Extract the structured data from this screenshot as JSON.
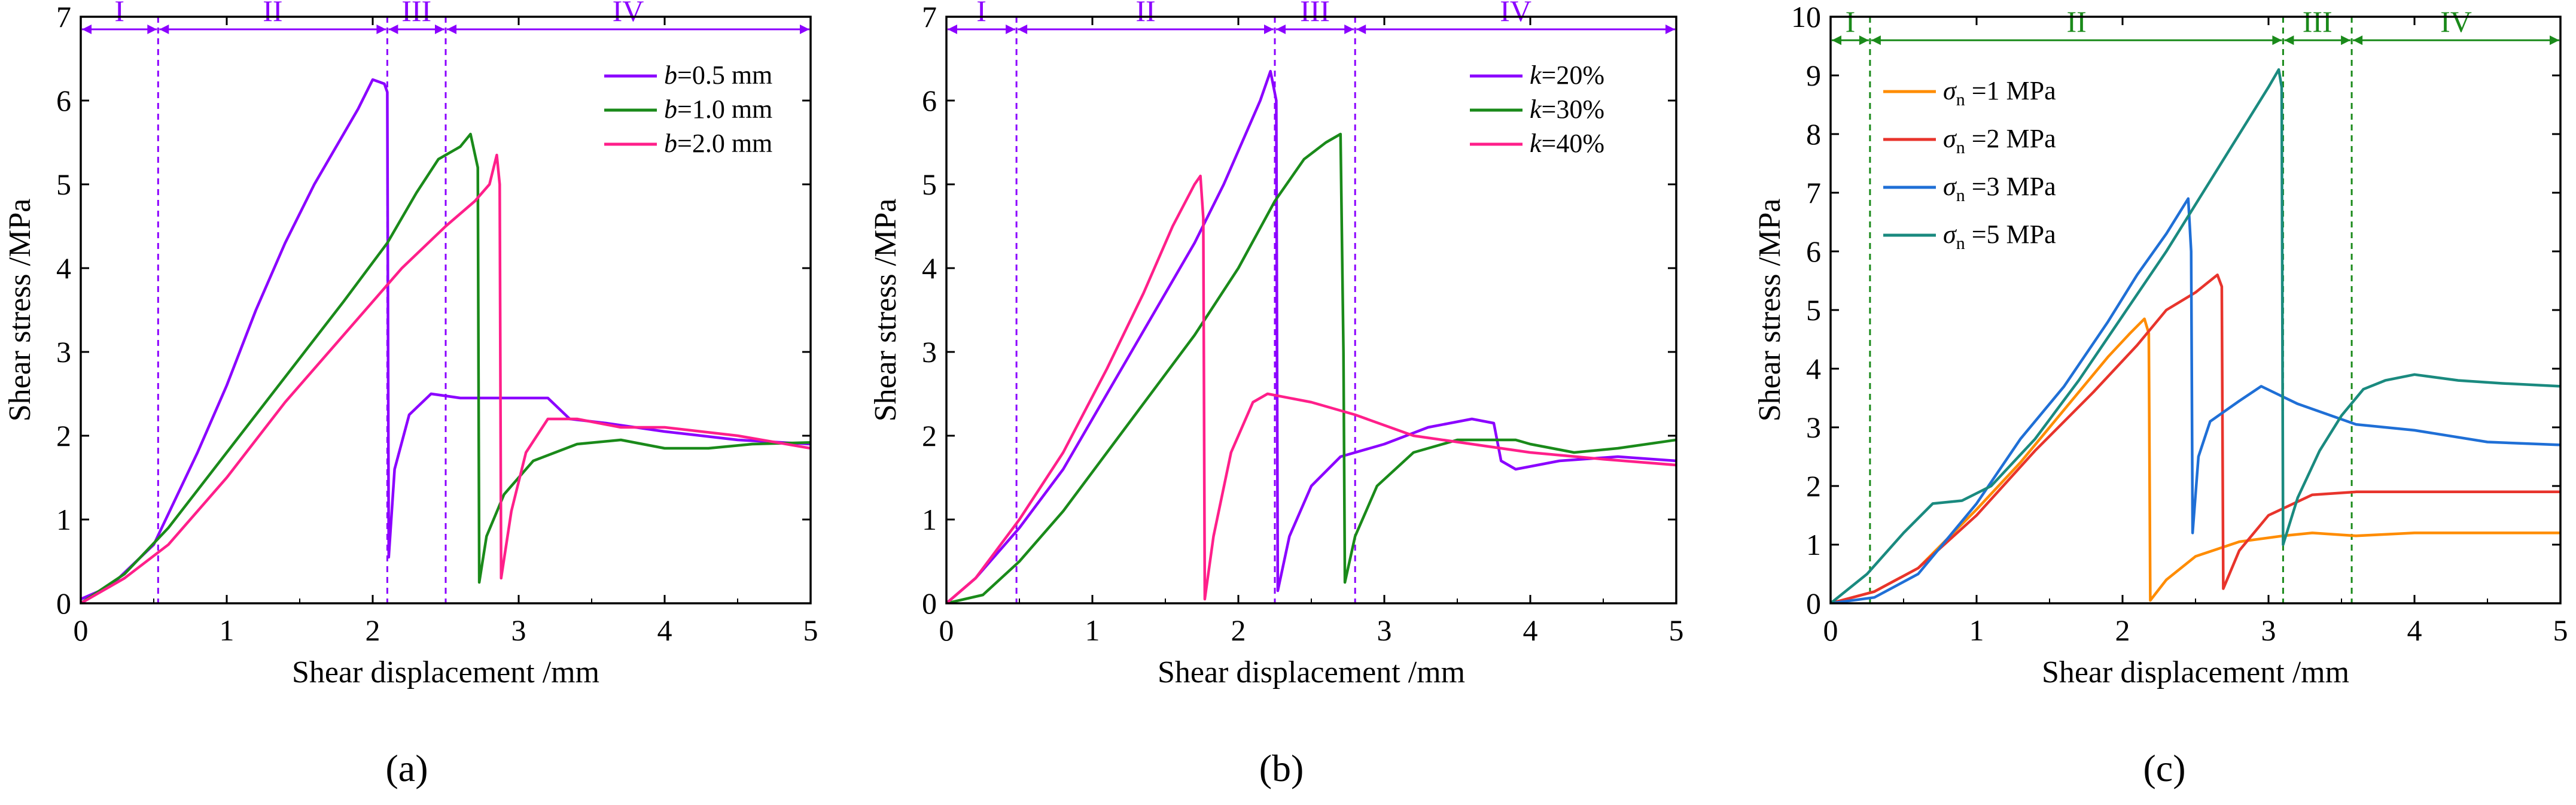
{
  "figure": {
    "panel_labels": [
      "(a)",
      "(b)",
      "(c)"
    ]
  },
  "chart_data": [
    {
      "type": "line",
      "panel": "(a)",
      "xlabel": "Shear displacement /mm",
      "ylabel": "Shear stress /MPa",
      "xlim": [
        0,
        5
      ],
      "ylim": [
        0,
        7
      ],
      "xticks": [
        "0",
        "1",
        "2",
        "3",
        "4",
        "5"
      ],
      "yticks": [
        "0",
        "1",
        "2",
        "3",
        "4",
        "5",
        "6",
        "7"
      ],
      "stage_color": "#8b00ff",
      "stage_boundaries": [
        0.53,
        2.1,
        2.5
      ],
      "stage_arrow_y": 6.85,
      "stages": [
        {
          "label": "I",
          "from": 0,
          "to": 0.53
        },
        {
          "label": "II",
          "from": 0.53,
          "to": 2.1
        },
        {
          "label": "III",
          "from": 2.1,
          "to": 2.5
        },
        {
          "label": "IV",
          "from": 2.5,
          "to": 5
        }
      ],
      "legend_position": "top-right",
      "series": [
        {
          "name_var": "b",
          "name_rest": "=0.5 mm",
          "color": "#8b00ff",
          "points": [
            [
              0,
              0.05
            ],
            [
              0.2,
              0.2
            ],
            [
              0.5,
              0.7
            ],
            [
              0.8,
              1.8
            ],
            [
              1.0,
              2.6
            ],
            [
              1.2,
              3.5
            ],
            [
              1.4,
              4.3
            ],
            [
              1.6,
              5.0
            ],
            [
              1.8,
              5.6
            ],
            [
              1.9,
              5.9
            ],
            [
              2.0,
              6.25
            ],
            [
              2.08,
              6.2
            ],
            [
              2.1,
              6.1
            ],
            [
              2.11,
              0.55
            ],
            [
              2.15,
              1.6
            ],
            [
              2.25,
              2.25
            ],
            [
              2.4,
              2.5
            ],
            [
              2.6,
              2.45
            ],
            [
              2.8,
              2.45
            ],
            [
              3.0,
              2.45
            ],
            [
              3.2,
              2.45
            ],
            [
              3.35,
              2.2
            ],
            [
              3.6,
              2.15
            ],
            [
              4.0,
              2.05
            ],
            [
              4.5,
              1.95
            ],
            [
              5.0,
              1.9
            ]
          ]
        },
        {
          "name_var": "b",
          "name_rest": "=1.0 mm",
          "color": "#1a8a1a",
          "points": [
            [
              0,
              0
            ],
            [
              0.3,
              0.35
            ],
            [
              0.6,
              0.9
            ],
            [
              1.0,
              1.8
            ],
            [
              1.4,
              2.7
            ],
            [
              1.8,
              3.6
            ],
            [
              2.1,
              4.3
            ],
            [
              2.3,
              4.9
            ],
            [
              2.45,
              5.3
            ],
            [
              2.6,
              5.45
            ],
            [
              2.67,
              5.6
            ],
            [
              2.72,
              5.2
            ],
            [
              2.73,
              0.25
            ],
            [
              2.78,
              0.8
            ],
            [
              2.9,
              1.3
            ],
            [
              3.1,
              1.7
            ],
            [
              3.4,
              1.9
            ],
            [
              3.7,
              1.95
            ],
            [
              4.0,
              1.85
            ],
            [
              4.3,
              1.85
            ],
            [
              4.6,
              1.9
            ],
            [
              5.0,
              1.92
            ]
          ]
        },
        {
          "name_var": "b",
          "name_rest": "=2.0 mm",
          "color": "#ff1f8a",
          "points": [
            [
              0,
              0
            ],
            [
              0.3,
              0.3
            ],
            [
              0.6,
              0.7
            ],
            [
              1.0,
              1.5
            ],
            [
              1.4,
              2.4
            ],
            [
              1.8,
              3.2
            ],
            [
              2.2,
              4.0
            ],
            [
              2.5,
              4.5
            ],
            [
              2.7,
              4.8
            ],
            [
              2.8,
              5.0
            ],
            [
              2.85,
              5.35
            ],
            [
              2.87,
              5.0
            ],
            [
              2.88,
              0.3
            ],
            [
              2.95,
              1.1
            ],
            [
              3.05,
              1.8
            ],
            [
              3.2,
              2.2
            ],
            [
              3.4,
              2.2
            ],
            [
              3.7,
              2.1
            ],
            [
              4.0,
              2.1
            ],
            [
              4.5,
              2.0
            ],
            [
              5.0,
              1.85
            ]
          ]
        }
      ]
    },
    {
      "type": "line",
      "panel": "(b)",
      "xlabel": "Shear displacement /mm",
      "ylabel": "Shear stress /MPa",
      "xlim": [
        0,
        5
      ],
      "ylim": [
        0,
        7
      ],
      "xticks": [
        "0",
        "1",
        "2",
        "3",
        "4",
        "5"
      ],
      "yticks": [
        "0",
        "1",
        "2",
        "3",
        "4",
        "5",
        "6",
        "7"
      ],
      "stage_color": "#8b00ff",
      "stage_boundaries": [
        0.48,
        2.25,
        2.8
      ],
      "stage_arrow_y": 6.85,
      "stages": [
        {
          "label": "I",
          "from": 0,
          "to": 0.48
        },
        {
          "label": "II",
          "from": 0.48,
          "to": 2.25
        },
        {
          "label": "III",
          "from": 2.25,
          "to": 2.8
        },
        {
          "label": "IV",
          "from": 2.8,
          "to": 5
        }
      ],
      "legend_position": "top-right",
      "series": [
        {
          "name_var": "k",
          "name_rest": "=20%",
          "color": "#8b00ff",
          "points": [
            [
              0,
              0
            ],
            [
              0.2,
              0.3
            ],
            [
              0.5,
              0.9
            ],
            [
              0.8,
              1.6
            ],
            [
              1.1,
              2.5
            ],
            [
              1.4,
              3.4
            ],
            [
              1.7,
              4.3
            ],
            [
              1.9,
              5.0
            ],
            [
              2.05,
              5.6
            ],
            [
              2.15,
              6.0
            ],
            [
              2.22,
              6.35
            ],
            [
              2.26,
              6.0
            ],
            [
              2.27,
              0.15
            ],
            [
              2.35,
              0.8
            ],
            [
              2.5,
              1.4
            ],
            [
              2.7,
              1.75
            ],
            [
              3.0,
              1.9
            ],
            [
              3.3,
              2.1
            ],
            [
              3.6,
              2.2
            ],
            [
              3.75,
              2.15
            ],
            [
              3.8,
              1.7
            ],
            [
              3.9,
              1.6
            ],
            [
              4.2,
              1.7
            ],
            [
              4.6,
              1.75
            ],
            [
              5.0,
              1.7
            ]
          ]
        },
        {
          "name_var": "k",
          "name_rest": "=30%",
          "color": "#1a8a1a",
          "points": [
            [
              0,
              0
            ],
            [
              0.25,
              0.1
            ],
            [
              0.5,
              0.5
            ],
            [
              0.8,
              1.1
            ],
            [
              1.1,
              1.8
            ],
            [
              1.4,
              2.5
            ],
            [
              1.7,
              3.2
            ],
            [
              2.0,
              4.0
            ],
            [
              2.25,
              4.8
            ],
            [
              2.45,
              5.3
            ],
            [
              2.6,
              5.5
            ],
            [
              2.7,
              5.6
            ],
            [
              2.72,
              3.0
            ],
            [
              2.73,
              0.25
            ],
            [
              2.8,
              0.8
            ],
            [
              2.95,
              1.4
            ],
            [
              3.2,
              1.8
            ],
            [
              3.5,
              1.95
            ],
            [
              3.9,
              1.95
            ],
            [
              4.0,
              1.9
            ],
            [
              4.3,
              1.8
            ],
            [
              4.6,
              1.85
            ],
            [
              5.0,
              1.95
            ]
          ]
        },
        {
          "name_var": "k",
          "name_rest": "=40%",
          "color": "#ff1f8a",
          "points": [
            [
              0,
              0
            ],
            [
              0.2,
              0.3
            ],
            [
              0.5,
              1.0
            ],
            [
              0.8,
              1.8
            ],
            [
              1.1,
              2.8
            ],
            [
              1.35,
              3.7
            ],
            [
              1.55,
              4.5
            ],
            [
              1.7,
              5.0
            ],
            [
              1.74,
              5.1
            ],
            [
              1.76,
              4.6
            ],
            [
              1.77,
              0.05
            ],
            [
              1.83,
              0.8
            ],
            [
              1.95,
              1.8
            ],
            [
              2.1,
              2.4
            ],
            [
              2.2,
              2.5
            ],
            [
              2.5,
              2.4
            ],
            [
              2.8,
              2.25
            ],
            [
              3.2,
              2.0
            ],
            [
              3.6,
              1.9
            ],
            [
              4.0,
              1.8
            ],
            [
              4.5,
              1.72
            ],
            [
              5.0,
              1.65
            ]
          ]
        }
      ]
    },
    {
      "type": "line",
      "panel": "(c)",
      "xlabel": "Shear displacement /mm",
      "ylabel": "Shear stress /MPa",
      "xlim": [
        0,
        5
      ],
      "ylim": [
        0,
        10
      ],
      "xticks": [
        "0",
        "1",
        "2",
        "3",
        "4",
        "5"
      ],
      "yticks": [
        "0",
        "1",
        "2",
        "3",
        "4",
        "5",
        "6",
        "7",
        "8",
        "9",
        "10"
      ],
      "stage_color": "#1a8a1a",
      "stage_boundaries": [
        0.27,
        3.1,
        3.57
      ],
      "stage_arrow_y": 9.6,
      "stages": [
        {
          "label": "I",
          "from": 0,
          "to": 0.27
        },
        {
          "label": "II",
          "from": 0.27,
          "to": 3.1
        },
        {
          "label": "III",
          "from": 3.1,
          "to": 3.57
        },
        {
          "label": "IV",
          "from": 3.57,
          "to": 5
        }
      ],
      "legend_position": "top-left",
      "series": [
        {
          "name_var": "σ",
          "name_sub": "n",
          "name_rest": " =1 MPa",
          "color": "#ff8c00",
          "points": [
            [
              0,
              0
            ],
            [
              0.3,
              0.2
            ],
            [
              0.6,
              0.6
            ],
            [
              1.0,
              1.6
            ],
            [
              1.3,
              2.4
            ],
            [
              1.6,
              3.3
            ],
            [
              1.9,
              4.2
            ],
            [
              2.05,
              4.6
            ],
            [
              2.15,
              4.85
            ],
            [
              2.18,
              4.6
            ],
            [
              2.19,
              0.05
            ],
            [
              2.3,
              0.4
            ],
            [
              2.5,
              0.8
            ],
            [
              2.8,
              1.05
            ],
            [
              3.1,
              1.15
            ],
            [
              3.3,
              1.2
            ],
            [
              3.6,
              1.15
            ],
            [
              4.0,
              1.2
            ],
            [
              4.5,
              1.2
            ],
            [
              5.0,
              1.2
            ]
          ]
        },
        {
          "name_var": "σ",
          "name_sub": "n",
          "name_rest": " =2 MPa",
          "color": "#e8342c",
          "points": [
            [
              0,
              0
            ],
            [
              0.3,
              0.2
            ],
            [
              0.6,
              0.6
            ],
            [
              1.0,
              1.5
            ],
            [
              1.4,
              2.6
            ],
            [
              1.8,
              3.6
            ],
            [
              2.1,
              4.4
            ],
            [
              2.3,
              5.0
            ],
            [
              2.5,
              5.3
            ],
            [
              2.65,
              5.6
            ],
            [
              2.68,
              5.4
            ],
            [
              2.69,
              0.25
            ],
            [
              2.8,
              0.9
            ],
            [
              3.0,
              1.5
            ],
            [
              3.3,
              1.85
            ],
            [
              3.6,
              1.9
            ],
            [
              4.0,
              1.9
            ],
            [
              4.5,
              1.9
            ],
            [
              5.0,
              1.9
            ]
          ]
        },
        {
          "name_var": "σ",
          "name_sub": "n",
          "name_rest": " =3 MPa",
          "color": "#1f6fd6",
          "points": [
            [
              0,
              0
            ],
            [
              0.3,
              0.1
            ],
            [
              0.6,
              0.5
            ],
            [
              1.0,
              1.7
            ],
            [
              1.3,
              2.8
            ],
            [
              1.6,
              3.7
            ],
            [
              1.9,
              4.8
            ],
            [
              2.1,
              5.6
            ],
            [
              2.3,
              6.3
            ],
            [
              2.45,
              6.9
            ],
            [
              2.47,
              6.0
            ],
            [
              2.48,
              1.2
            ],
            [
              2.52,
              2.5
            ],
            [
              2.6,
              3.1
            ],
            [
              2.8,
              3.45
            ],
            [
              2.95,
              3.7
            ],
            [
              3.2,
              3.4
            ],
            [
              3.6,
              3.05
            ],
            [
              4.0,
              2.95
            ],
            [
              4.5,
              2.75
            ],
            [
              5.0,
              2.7
            ]
          ]
        },
        {
          "name_var": "σ",
          "name_sub": "n",
          "name_rest": " =5 MPa",
          "color": "#1a8a7f",
          "points": [
            [
              0,
              0
            ],
            [
              0.25,
              0.5
            ],
            [
              0.5,
              1.2
            ],
            [
              0.7,
              1.7
            ],
            [
              0.9,
              1.75
            ],
            [
              1.1,
              2.0
            ],
            [
              1.4,
              2.8
            ],
            [
              1.7,
              3.8
            ],
            [
              2.0,
              4.9
            ],
            [
              2.3,
              6.0
            ],
            [
              2.6,
              7.2
            ],
            [
              2.85,
              8.2
            ],
            [
              3.0,
              8.8
            ],
            [
              3.07,
              9.1
            ],
            [
              3.09,
              8.8
            ],
            [
              3.1,
              1.0
            ],
            [
              3.2,
              1.8
            ],
            [
              3.35,
              2.6
            ],
            [
              3.5,
              3.2
            ],
            [
              3.65,
              3.65
            ],
            [
              3.8,
              3.8
            ],
            [
              4.0,
              3.9
            ],
            [
              4.3,
              3.8
            ],
            [
              4.6,
              3.75
            ],
            [
              5.0,
              3.7
            ]
          ]
        }
      ]
    }
  ]
}
